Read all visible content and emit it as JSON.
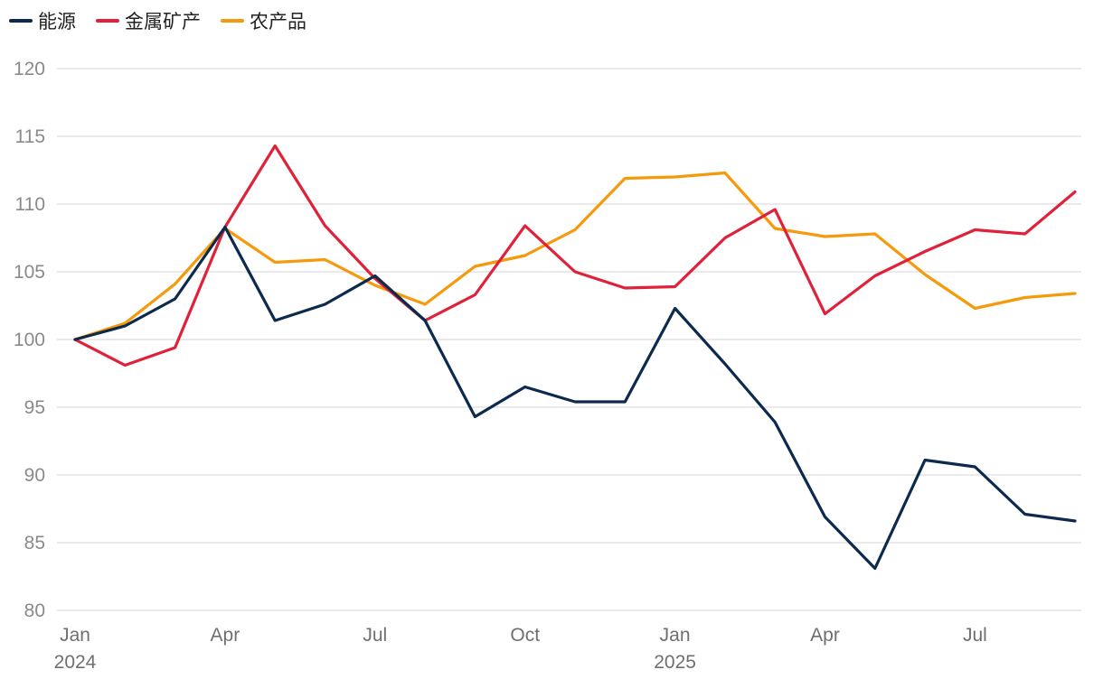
{
  "chart_data": {
    "type": "line",
    "x": [
      "2024-01",
      "2024-02",
      "2024-03",
      "2024-04",
      "2024-05",
      "2024-06",
      "2024-07",
      "2024-08",
      "2024-09",
      "2024-10",
      "2024-11",
      "2024-12",
      "2025-01",
      "2025-02",
      "2025-03",
      "2025-04",
      "2025-05",
      "2025-06",
      "2025-07",
      "2025-08",
      "2025-09"
    ],
    "x_tick_labels": [
      {
        "x": "2024-01",
        "label": "Jan",
        "year": "2024"
      },
      {
        "x": "2024-04",
        "label": "Apr",
        "year": ""
      },
      {
        "x": "2024-07",
        "label": "Jul",
        "year": ""
      },
      {
        "x": "2024-10",
        "label": "Oct",
        "year": ""
      },
      {
        "x": "2025-01",
        "label": "Jan",
        "year": "2025"
      },
      {
        "x": "2025-04",
        "label": "Apr",
        "year": ""
      },
      {
        "x": "2025-07",
        "label": "Jul",
        "year": ""
      }
    ],
    "y_ticks": [
      80,
      85,
      90,
      95,
      100,
      105,
      110,
      115,
      120
    ],
    "ylim": [
      80,
      120
    ],
    "grid": "horizontal",
    "legend": "top-left",
    "series": [
      {
        "name": "能源",
        "color": "#0c2a4d",
        "values": [
          100,
          101,
          103,
          108.3,
          101.4,
          102.6,
          104.7,
          101.4,
          94.3,
          96.5,
          95.4,
          95.4,
          102.3,
          98.2,
          93.9,
          86.9,
          83.1,
          91.1,
          90.6,
          87.1,
          86.6
        ]
      },
      {
        "name": "金属矿产",
        "color": "#e0213a",
        "values": [
          100,
          98.1,
          99.4,
          108.3,
          114.3,
          108.4,
          104.5,
          101.4,
          103.3,
          108.4,
          105.0,
          103.8,
          103.9,
          107.5,
          109.6,
          101.9,
          104.7,
          106.5,
          108.1,
          107.8,
          110.9
        ]
      },
      {
        "name": "农产品",
        "color": "#f59a0c",
        "values": [
          100,
          101.2,
          104.1,
          108.2,
          105.7,
          105.9,
          104.0,
          102.6,
          105.4,
          106.2,
          108.1,
          111.9,
          112.0,
          112.3,
          108.2,
          107.6,
          107.8,
          104.8,
          102.3,
          103.1,
          103.4
        ]
      }
    ]
  }
}
